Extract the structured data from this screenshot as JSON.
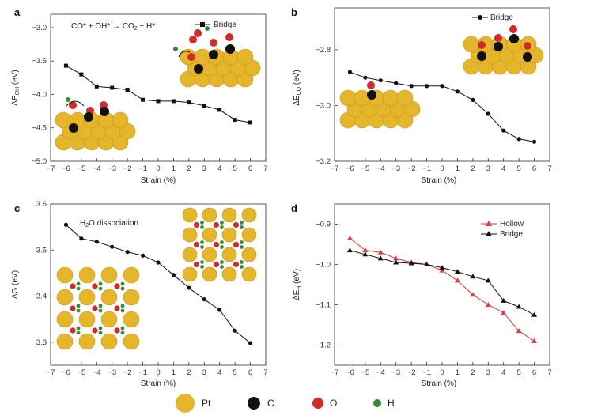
{
  "colors": {
    "black_series": "#111111",
    "red_series": "#e23a3a",
    "pt": "#e6b62a",
    "c": "#111111",
    "o": "#d42a2a",
    "h": "#2f8f3a"
  },
  "bottom_legend": [
    {
      "label": "Pt",
      "color": "#e6b62a"
    },
    {
      "label": "C",
      "color": "#111111"
    },
    {
      "label": "O",
      "color": "#d42a2a"
    },
    {
      "label": "H",
      "color": "#2f8f3a"
    }
  ],
  "chart_data": [
    {
      "id": "a",
      "panel_label": "a",
      "type": "line",
      "title": "CO* + OH* → CO2 + H*",
      "xlabel": "Strain (%)",
      "ylabel": "ΔE_OH (eV)",
      "xlim": [
        -7,
        7
      ],
      "ylim": [
        -5.0,
        -2.8
      ],
      "xticks": [
        -7,
        -6,
        -5,
        -4,
        -3,
        -2,
        -1,
        0,
        1,
        2,
        3,
        4,
        5,
        6,
        7
      ],
      "yticks": [
        -5.0,
        -4.5,
        -4.0,
        -3.5,
        -3.0
      ],
      "ytick_labels": [
        "-5.0",
        "-4.5",
        "-4.0",
        "-3.5",
        "-3.0"
      ],
      "legend": "top-right",
      "series": [
        {
          "name": "Bridge",
          "color": "#111111",
          "marker": "square",
          "x": [
            -6,
            -5,
            -4,
            -3,
            -2,
            -1,
            0,
            1,
            2,
            3,
            4,
            5,
            6
          ],
          "y": [
            -3.57,
            -3.7,
            -3.88,
            -3.9,
            -3.93,
            -4.08,
            -4.1,
            -4.1,
            -4.12,
            -4.17,
            -4.23,
            -4.38,
            -4.42
          ]
        }
      ]
    },
    {
      "id": "b",
      "panel_label": "b",
      "type": "line",
      "title": "",
      "xlabel": "Strain (%)",
      "ylabel": "ΔE_CO (eV)",
      "xlim": [
        -7,
        7
      ],
      "ylim": [
        -3.2,
        -2.65
      ],
      "xticks": [
        -7,
        -6,
        -5,
        -4,
        -3,
        -2,
        -1,
        0,
        1,
        2,
        3,
        4,
        5,
        6,
        7
      ],
      "yticks": [
        -3.2,
        -3.0,
        -2.8
      ],
      "ytick_labels": [
        "-3.2",
        "-3.0",
        "-2.8"
      ],
      "legend": "top-right",
      "series": [
        {
          "name": "Bridge",
          "color": "#111111",
          "marker": "circle",
          "x": [
            -6,
            -5,
            -4,
            -3,
            -2,
            -1,
            0,
            1,
            2,
            3,
            4,
            5,
            6
          ],
          "y": [
            -2.88,
            -2.9,
            -2.91,
            -2.92,
            -2.93,
            -2.93,
            -2.93,
            -2.95,
            -2.98,
            -3.03,
            -3.09,
            -3.12,
            -3.13
          ]
        }
      ]
    },
    {
      "id": "c",
      "panel_label": "c",
      "type": "line",
      "title": "H2O dissociation",
      "xlabel": "Strain (%)",
      "ylabel": "ΔG (eV)",
      "xlim": [
        -7,
        7
      ],
      "ylim": [
        3.25,
        3.6
      ],
      "xticks": [
        -7,
        -6,
        -5,
        -4,
        -3,
        -2,
        -1,
        0,
        1,
        2,
        3,
        4,
        5,
        6,
        7
      ],
      "yticks": [
        3.3,
        3.4,
        3.5,
        3.6
      ],
      "ytick_labels": [
        "3.3",
        "3.4",
        "3.5",
        "3.6"
      ],
      "legend": "none",
      "series": [
        {
          "name": "H2O dissociation",
          "color": "#111111",
          "marker": "circle",
          "x": [
            -6,
            -5,
            -4,
            -3,
            -2,
            -1,
            0,
            1,
            2,
            3,
            4,
            5,
            6
          ],
          "y": [
            3.555,
            3.525,
            3.518,
            3.507,
            3.496,
            3.488,
            3.473,
            3.446,
            3.418,
            3.393,
            3.37,
            3.325,
            3.298
          ]
        }
      ]
    },
    {
      "id": "d",
      "panel_label": "d",
      "type": "line",
      "title": "",
      "xlabel": "Strain (%)",
      "ylabel": "ΔE_H (eV)",
      "xlim": [
        -7,
        7
      ],
      "ylim": [
        -1.25,
        -0.85
      ],
      "xticks": [
        -7,
        -6,
        -5,
        -4,
        -3,
        -2,
        -1,
        0,
        1,
        2,
        3,
        4,
        5,
        6,
        7
      ],
      "yticks": [
        -1.2,
        -1.1,
        -1.0,
        -0.9
      ],
      "ytick_labels": [
        "-1.2",
        "-1.1",
        "-1.0",
        "-0.9"
      ],
      "legend": "top-right",
      "series": [
        {
          "name": "Hollow",
          "color": "#e23a3a",
          "marker": "triangle",
          "x": [
            -6,
            -5,
            -4,
            -3,
            -2,
            -1,
            0,
            1,
            2,
            3,
            4,
            5,
            6
          ],
          "y": [
            -0.935,
            -0.965,
            -0.97,
            -0.985,
            -0.995,
            -1.0,
            -1.015,
            -1.04,
            -1.075,
            -1.1,
            -1.12,
            -1.165,
            -1.19
          ]
        },
        {
          "name": "Bridge",
          "color": "#111111",
          "marker": "triangle",
          "x": [
            -6,
            -5,
            -4,
            -3,
            -2,
            -1,
            0,
            1,
            2,
            3,
            4,
            5,
            6
          ],
          "y": [
            -0.965,
            -0.975,
            -0.985,
            -0.995,
            -0.997,
            -1.0,
            -1.008,
            -1.018,
            -1.03,
            -1.04,
            -1.09,
            -1.105,
            -1.125
          ]
        }
      ]
    }
  ]
}
